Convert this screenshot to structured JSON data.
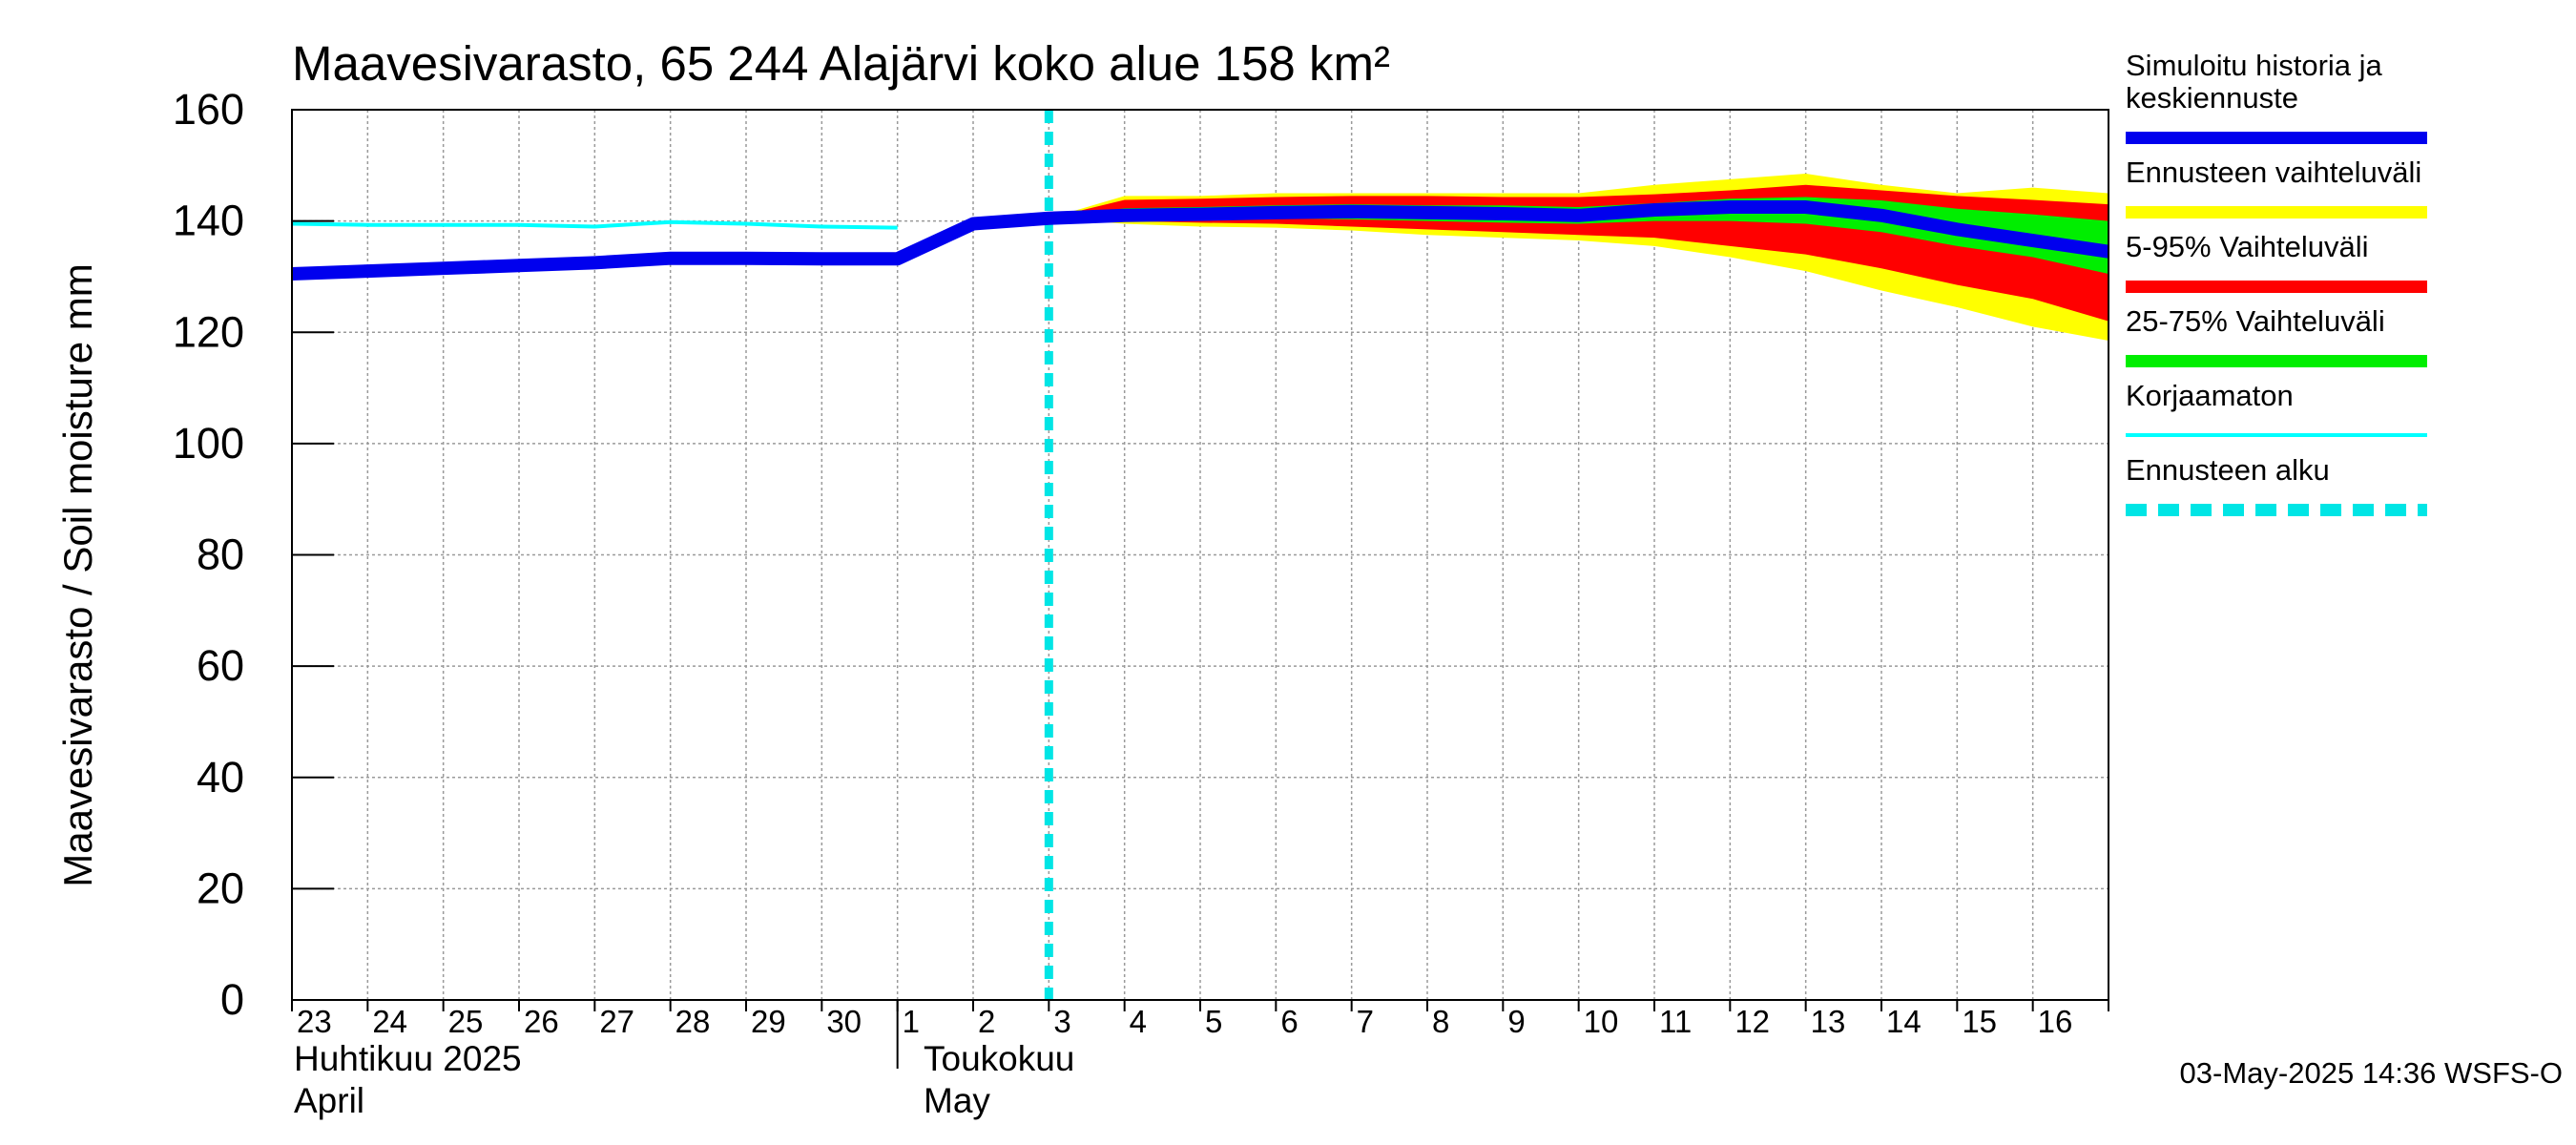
{
  "chart_data": {
    "type": "area",
    "title": "Maavesivarasto, 65 244 Alajärvi koko alue 158 km²",
    "ylabel": "Maavesivarasto / Soil moisture   mm",
    "ylim": [
      0,
      160
    ],
    "yticks": [
      0,
      20,
      40,
      60,
      80,
      100,
      120,
      140,
      160
    ],
    "xlim": [
      "2025-04-23",
      "2025-05-17"
    ],
    "x_tick_labels": [
      "23",
      "24",
      "25",
      "26",
      "27",
      "28",
      "29",
      "30",
      "1",
      "2",
      "3",
      "4",
      "5",
      "6",
      "7",
      "8",
      "9",
      "10",
      "11",
      "12",
      "13",
      "14",
      "15",
      "16"
    ],
    "month_labels": [
      {
        "fi": "Huhtikuu  2025",
        "en": "April"
      },
      {
        "fi": "Toukokuu",
        "en": "May"
      }
    ],
    "forecast_start": "2025-05-03",
    "grid": true,
    "legend_position": "right",
    "series": [
      {
        "name": "Simuloitu historia ja keskiennuste",
        "color": "#0000ee",
        "x": [
          "2025-04-23",
          "2025-04-24",
          "2025-04-25",
          "2025-04-26",
          "2025-04-27",
          "2025-04-28",
          "2025-04-29",
          "2025-04-30",
          "2025-05-01",
          "2025-05-02",
          "2025-05-03",
          "2025-05-04",
          "2025-05-05",
          "2025-05-06",
          "2025-05-07",
          "2025-05-08",
          "2025-05-09",
          "2025-05-10",
          "2025-05-11",
          "2025-05-12",
          "2025-05-13",
          "2025-05-14",
          "2025-05-15",
          "2025-05-16",
          "2025-05-17"
        ],
        "y": [
          130.5,
          131,
          131.5,
          132,
          132.5,
          133.3,
          133.3,
          133.2,
          133.2,
          139.5,
          140.5,
          141,
          141.2,
          141.5,
          141.7,
          141.5,
          141.3,
          141,
          142,
          142.5,
          142.5,
          141,
          138.5,
          136.5,
          134.5
        ]
      },
      {
        "name": "Korjaamaton",
        "color": "#00ffff",
        "x": [
          "2025-04-23",
          "2025-04-24",
          "2025-04-25",
          "2025-04-26",
          "2025-04-27",
          "2025-04-28",
          "2025-04-29",
          "2025-04-30",
          "2025-05-01"
        ],
        "y": [
          139.5,
          139.3,
          139.3,
          139.3,
          139,
          139.8,
          139.5,
          139,
          138.8
        ]
      }
    ],
    "bands": [
      {
        "name": "Ennusteen vaihteluväli",
        "color": "#ffff00",
        "x": [
          "2025-05-03",
          "2025-05-04",
          "2025-05-05",
          "2025-05-06",
          "2025-05-07",
          "2025-05-08",
          "2025-05-09",
          "2025-05-10",
          "2025-05-11",
          "2025-05-12",
          "2025-05-13",
          "2025-05-14",
          "2025-05-15",
          "2025-05-16",
          "2025-05-17"
        ],
        "upper": [
          140.5,
          144.5,
          144.5,
          145,
          145,
          145,
          145,
          145,
          146.5,
          147.5,
          148.5,
          146.5,
          145,
          146,
          145
        ],
        "lower": [
          140.5,
          139.5,
          139,
          138.8,
          138.3,
          137.5,
          137,
          136.5,
          135.5,
          133.5,
          131,
          127.5,
          124.5,
          121,
          118.5
        ]
      },
      {
        "name": "5-95% Vaihteluväli",
        "color": "#ff0000",
        "x": [
          "2025-05-03",
          "2025-05-04",
          "2025-05-05",
          "2025-05-06",
          "2025-05-07",
          "2025-05-08",
          "2025-05-09",
          "2025-05-10",
          "2025-05-11",
          "2025-05-12",
          "2025-05-13",
          "2025-05-14",
          "2025-05-15",
          "2025-05-16",
          "2025-05-17"
        ],
        "upper": [
          140.5,
          143.8,
          144,
          144.3,
          144.5,
          144.5,
          144.3,
          144.3,
          144.8,
          145.5,
          146.5,
          145.5,
          144.5,
          143.8,
          143
        ],
        "lower": [
          140.5,
          140,
          139.7,
          139.5,
          139,
          138.5,
          138,
          137.5,
          137,
          135.5,
          134,
          131.5,
          128.5,
          126,
          122
        ]
      },
      {
        "name": "25-75% Vaihteluväli",
        "color": "#00ee00",
        "x": [
          "2025-05-03",
          "2025-05-04",
          "2025-05-05",
          "2025-05-06",
          "2025-05-07",
          "2025-05-08",
          "2025-05-09",
          "2025-05-10",
          "2025-05-11",
          "2025-05-12",
          "2025-05-13",
          "2025-05-14",
          "2025-05-15",
          "2025-05-16",
          "2025-05-17"
        ],
        "upper": [
          140.5,
          142.3,
          142.5,
          142.8,
          143,
          142.8,
          142.8,
          142.5,
          143.2,
          144,
          144.3,
          143.7,
          142.2,
          141.2,
          140
        ],
        "lower": [
          140.5,
          140.5,
          140.5,
          140.5,
          140.3,
          140,
          139.7,
          139.5,
          140,
          140,
          139.5,
          138,
          135.5,
          133.5,
          130.5
        ]
      }
    ]
  },
  "legend": {
    "items": [
      {
        "label_lines": [
          "Simuloitu historia ja",
          "keskiennuste"
        ],
        "color": "#0000ee",
        "style": "solid"
      },
      {
        "label_lines": [
          "Ennusteen vaihteluväli"
        ],
        "color": "#ffff00",
        "style": "solid"
      },
      {
        "label_lines": [
          "5-95% Vaihteluväli"
        ],
        "color": "#ff0000",
        "style": "solid"
      },
      {
        "label_lines": [
          "25-75% Vaihteluväli"
        ],
        "color": "#00ee00",
        "style": "solid"
      },
      {
        "label_lines": [
          "Korjaamaton"
        ],
        "color": "#00ffff",
        "style": "thin"
      },
      {
        "label_lines": [
          "Ennusteen alku"
        ],
        "color": "#00e5e5",
        "style": "dashed"
      }
    ]
  },
  "footer": {
    "timestamp": "03-May-2025 14:36 WSFS-O"
  }
}
